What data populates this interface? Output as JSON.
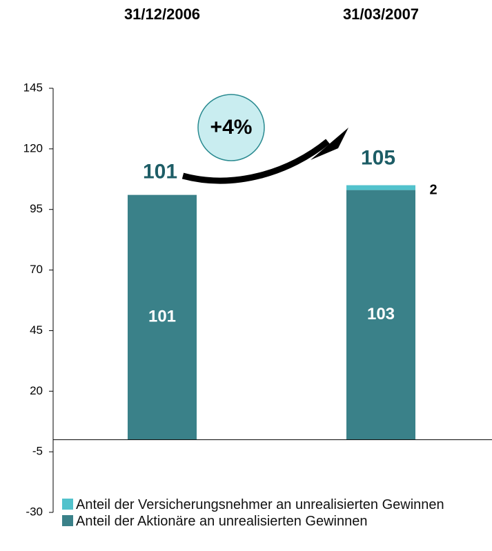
{
  "chart_data": {
    "type": "stacked_bar",
    "categories": [
      "31/12/2006",
      "31/03/2007"
    ],
    "series": [
      {
        "name": "Anteil der Aktionäre an unrealisierten Gewinnen",
        "color": "#3a8189",
        "values": [
          101,
          103
        ]
      },
      {
        "name": "Anteil der Versicherungsnehmer an unrealisierten Gewinnen",
        "color": "#52c2cc",
        "values": [
          null,
          2
        ]
      }
    ],
    "totals": [
      101,
      105
    ],
    "annotation": "+4%",
    "ylim": [
      -30,
      145
    ],
    "yticks": [
      145,
      120,
      95,
      70,
      45,
      20,
      -5,
      -30
    ]
  }
}
